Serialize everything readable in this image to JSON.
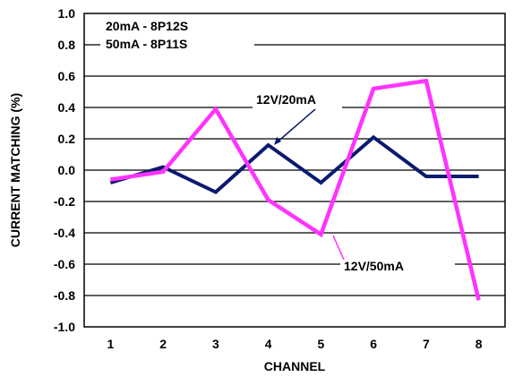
{
  "chart_data": {
    "type": "line",
    "categories": [
      "1",
      "2",
      "3",
      "4",
      "5",
      "6",
      "7",
      "8"
    ],
    "x": [
      1,
      2,
      3,
      4,
      5,
      6,
      7,
      8
    ],
    "series": [
      {
        "name": "12V/20mA",
        "color": "#0a1a6e",
        "values": [
          -0.08,
          0.02,
          -0.14,
          0.16,
          -0.08,
          0.21,
          -0.04,
          -0.04
        ]
      },
      {
        "name": "12V/50mA",
        "color": "#ff33ff",
        "values": [
          -0.06,
          -0.01,
          0.39,
          -0.19,
          -0.41,
          0.52,
          0.57,
          -0.83
        ]
      }
    ],
    "xlabel": "CHANNEL",
    "ylabel": "CURRENT MATCHING (%)",
    "ylim": [
      -1.0,
      1.0
    ],
    "yticks": [
      "1.0",
      "0.8",
      "0.6",
      "0.4",
      "0.2",
      "0.0",
      "-0.2",
      "-0.4",
      "-0.6",
      "-0.8",
      "-1.0"
    ],
    "grid": "horizontal",
    "legend_lines": [
      "20mA - 8P12S",
      "50mA - 8P11S"
    ],
    "annotations": [
      "12V/20mA",
      "12V/50mA"
    ]
  }
}
